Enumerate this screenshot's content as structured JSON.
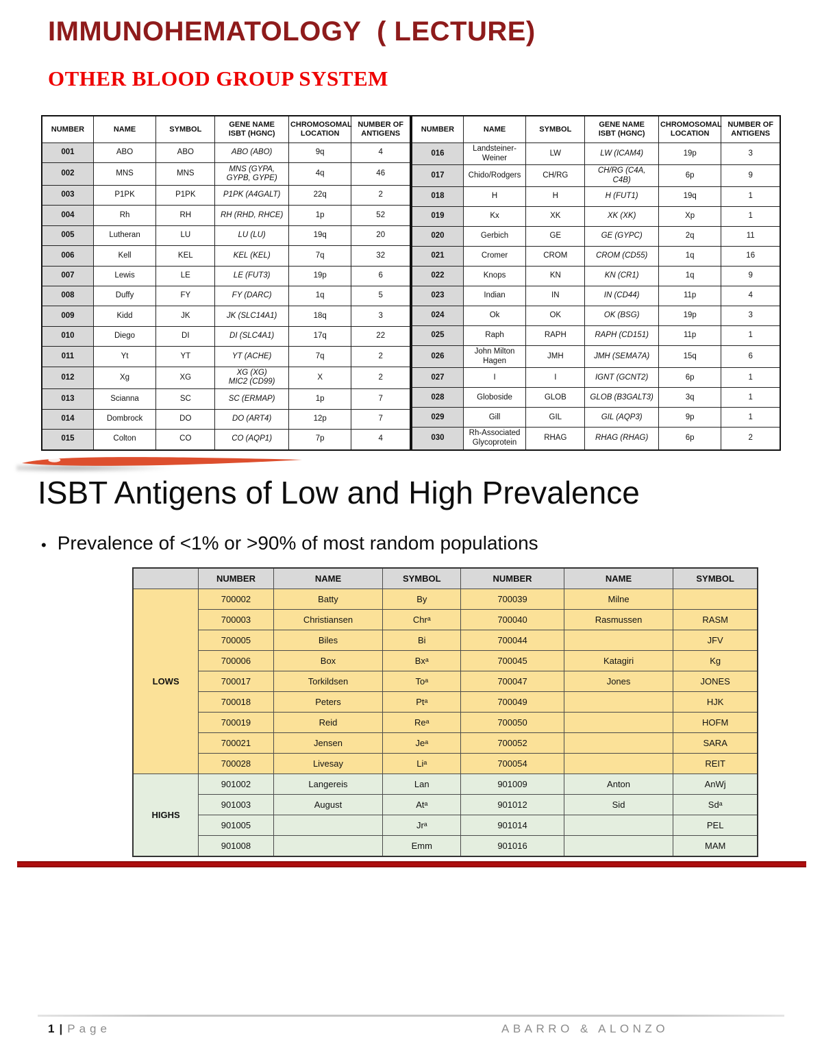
{
  "header": {
    "title": "IMMUNOHEMATOLOGY  ( LECTURE)",
    "subtitle": "OTHER BLOOD GROUP SYSTEM"
  },
  "systems_table": {
    "headers": [
      "NUMBER",
      "NAME",
      "SYMBOL",
      "GENE NAME\nISBT (HGNC)",
      "CHROMOSOMAL\nLOCATION",
      "NUMBER OF\nANTIGENS"
    ],
    "left_rows": [
      [
        "001",
        "ABO",
        "ABO",
        "ABO (ABO)",
        "9q",
        "4"
      ],
      [
        "002",
        "MNS",
        "MNS",
        "MNS (GYPA,\nGYPB, GYPE)",
        "4q",
        "46"
      ],
      [
        "003",
        "P1PK",
        "P1PK",
        "P1PK (A4GALT)",
        "22q",
        "2"
      ],
      [
        "004",
        "Rh",
        "RH",
        "RH (RHD, RHCE)",
        "1p",
        "52"
      ],
      [
        "005",
        "Lutheran",
        "LU",
        "LU (LU)",
        "19q",
        "20"
      ],
      [
        "006",
        "Kell",
        "KEL",
        "KEL (KEL)",
        "7q",
        "32"
      ],
      [
        "007",
        "Lewis",
        "LE",
        "LE (FUT3)",
        "19p",
        "6"
      ],
      [
        "008",
        "Duffy",
        "FY",
        "FY (DARC)",
        "1q",
        "5"
      ],
      [
        "009",
        "Kidd",
        "JK",
        "JK (SLC14A1)",
        "18q",
        "3"
      ],
      [
        "010",
        "Diego",
        "DI",
        "DI (SLC4A1)",
        "17q",
        "22"
      ],
      [
        "011",
        "Yt",
        "YT",
        "YT (ACHE)",
        "7q",
        "2"
      ],
      [
        "012",
        "Xg",
        "XG",
        "XG (XG)\nMIC2 (CD99)",
        "X",
        "2"
      ],
      [
        "013",
        "Scianna",
        "SC",
        "SC (ERMAP)",
        "1p",
        "7"
      ],
      [
        "014",
        "Dombrock",
        "DO",
        "DO (ART4)",
        "12p",
        "7"
      ],
      [
        "015",
        "Colton",
        "CO",
        "CO (AQP1)",
        "7p",
        "4"
      ]
    ],
    "right_rows": [
      [
        "016",
        "Landsteiner-\nWeiner",
        "LW",
        "LW (ICAM4)",
        "19p",
        "3"
      ],
      [
        "017",
        "Chido/Rodgers",
        "CH/RG",
        "CH/RG (C4A,\nC4B)",
        "6p",
        "9"
      ],
      [
        "018",
        "H",
        "H",
        "H (FUT1)",
        "19q",
        "1"
      ],
      [
        "019",
        "Kx",
        "XK",
        "XK (XK)",
        "Xp",
        "1"
      ],
      [
        "020",
        "Gerbich",
        "GE",
        "GE (GYPC)",
        "2q",
        "11"
      ],
      [
        "021",
        "Cromer",
        "CROM",
        "CROM (CD55)",
        "1q",
        "16"
      ],
      [
        "022",
        "Knops",
        "KN",
        "KN (CR1)",
        "1q",
        "9"
      ],
      [
        "023",
        "Indian",
        "IN",
        "IN (CD44)",
        "11p",
        "4"
      ],
      [
        "024",
        "Ok",
        "OK",
        "OK (BSG)",
        "19p",
        "3"
      ],
      [
        "025",
        "Raph",
        "RAPH",
        "RAPH (CD151)",
        "11p",
        "1"
      ],
      [
        "026",
        "John Milton\nHagen",
        "JMH",
        "JMH (SEMA7A)",
        "15q",
        "6"
      ],
      [
        "027",
        "I",
        "I",
        "IGNT (GCNT2)",
        "6p",
        "1"
      ],
      [
        "028",
        "Globoside",
        "GLOB",
        "GLOB (B3GALT3)",
        "3q",
        "1"
      ],
      [
        "029",
        "Gill",
        "GIL",
        "GIL (AQP3)",
        "9p",
        "1"
      ],
      [
        "030",
        "Rh-Associated\nGlycoprotein",
        "RHAG",
        "RHAG (RHAG)",
        "6p",
        "2"
      ]
    ]
  },
  "isbt_section": {
    "heading": "ISBT Antigens of Low and High Prevalence",
    "bullet": "Prevalence of <1% or >90% of most random populations",
    "table": {
      "headers": [
        "NUMBER",
        "NAME",
        "SYMBOL",
        "NUMBER",
        "NAME",
        "SYMBOL"
      ],
      "groups": [
        {
          "label": "LOWS",
          "color": "#FBE198",
          "rows": [
            [
              "700002",
              "Batty",
              "By",
              "700039",
              "Milne",
              ""
            ],
            [
              "700003",
              "Christiansen",
              "Chrᵃ",
              "700040",
              "Rasmussen",
              "RASM"
            ],
            [
              "700005",
              "Biles",
              "Bi",
              "700044",
              "",
              "JFV"
            ],
            [
              "700006",
              "Box",
              "Bxᵃ",
              "700045",
              "Katagiri",
              "Kg"
            ],
            [
              "700017",
              "Torkildsen",
              "Toᵃ",
              "700047",
              "Jones",
              "JONES"
            ],
            [
              "700018",
              "Peters",
              "Ptᵃ",
              "700049",
              "",
              "HJK"
            ],
            [
              "700019",
              "Reid",
              "Reᵃ",
              "700050",
              "",
              "HOFM"
            ],
            [
              "700021",
              "Jensen",
              "Jeᵃ",
              "700052",
              "",
              "SARA"
            ],
            [
              "700028",
              "Livesay",
              "Liᵃ",
              "700054",
              "",
              "REIT"
            ]
          ]
        },
        {
          "label": "HIGHS",
          "color": "#E4EEDF",
          "rows": [
            [
              "901002",
              "Langereis",
              "Lan",
              "901009",
              "Anton",
              "AnWj"
            ],
            [
              "901003",
              "August",
              "Atᵃ",
              "901012",
              "Sid",
              "Sdᵃ"
            ],
            [
              "901005",
              "",
              "Jrᵃ",
              "901014",
              "",
              "PEL"
            ],
            [
              "901008",
              "",
              "Emm",
              "901016",
              "",
              "MAM"
            ]
          ]
        }
      ]
    }
  },
  "footer": {
    "page_number": "1",
    "separator": "|",
    "page_label": "Page",
    "authors": "ABARRO & ALONZO"
  },
  "colors": {
    "title_red": "#8E1B1B",
    "subtitle_red": "#EE0000",
    "swoosh_orange": "#DD4F2E",
    "divider_red": "#AF0E0E",
    "header_gray": "#D9D9D9",
    "lows_yellow": "#FBE198",
    "highs_green": "#E4EEDF"
  }
}
